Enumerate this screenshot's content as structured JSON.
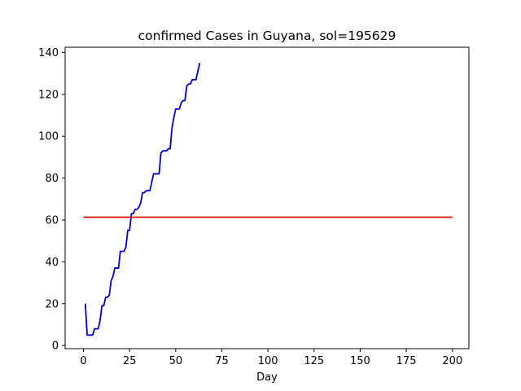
{
  "chart_data": {
    "type": "line",
    "title": "confirmed Cases in Guyana, sol=195629",
    "xlabel": "Day",
    "ylabel": "",
    "xlim": [
      -9.95,
      208.95
    ],
    "ylim": [
      -1.5,
      142.5
    ],
    "xticks": [
      0,
      25,
      50,
      75,
      100,
      125,
      150,
      175,
      200
    ],
    "yticks": [
      0,
      20,
      40,
      60,
      80,
      100,
      120,
      140
    ],
    "grid": false,
    "series": [
      {
        "color": "#0000cc",
        "points": [
          [
            1,
            20
          ],
          [
            2,
            5
          ],
          [
            3,
            5
          ],
          [
            4,
            5
          ],
          [
            5,
            5
          ],
          [
            6,
            8
          ],
          [
            7,
            8
          ],
          [
            8,
            8
          ],
          [
            9,
            12
          ],
          [
            10,
            19
          ],
          [
            11,
            19
          ],
          [
            12,
            23
          ],
          [
            13,
            23
          ],
          [
            14,
            24
          ],
          [
            15,
            31
          ],
          [
            16,
            33
          ],
          [
            17,
            37
          ],
          [
            18,
            37
          ],
          [
            19,
            37
          ],
          [
            20,
            45
          ],
          [
            21,
            45
          ],
          [
            22,
            45
          ],
          [
            23,
            47
          ],
          [
            24,
            55
          ],
          [
            25,
            55
          ],
          [
            26,
            63
          ],
          [
            27,
            63
          ],
          [
            28,
            65
          ],
          [
            29,
            65
          ],
          [
            30,
            66
          ],
          [
            31,
            68
          ],
          [
            32,
            73
          ],
          [
            33,
            73
          ],
          [
            34,
            74
          ],
          [
            35,
            74
          ],
          [
            36,
            74
          ],
          [
            37,
            78
          ],
          [
            38,
            82
          ],
          [
            39,
            82
          ],
          [
            40,
            82
          ],
          [
            41,
            82
          ],
          [
            42,
            92
          ],
          [
            43,
            93
          ],
          [
            44,
            93
          ],
          [
            45,
            93
          ],
          [
            46,
            94
          ],
          [
            47,
            94
          ],
          [
            48,
            104
          ],
          [
            49,
            109
          ],
          [
            50,
            113
          ],
          [
            51,
            113
          ],
          [
            52,
            113
          ],
          [
            53,
            116
          ],
          [
            54,
            117
          ],
          [
            55,
            117
          ],
          [
            56,
            124
          ],
          [
            57,
            125
          ],
          [
            58,
            125
          ],
          [
            59,
            127
          ],
          [
            60,
            127
          ],
          [
            61,
            127
          ],
          [
            62,
            131
          ],
          [
            63,
            135
          ]
        ]
      },
      {
        "color": "#dd0000",
        "points": [
          [
            0,
            61.3
          ],
          [
            200,
            61.3
          ]
        ]
      }
    ]
  }
}
